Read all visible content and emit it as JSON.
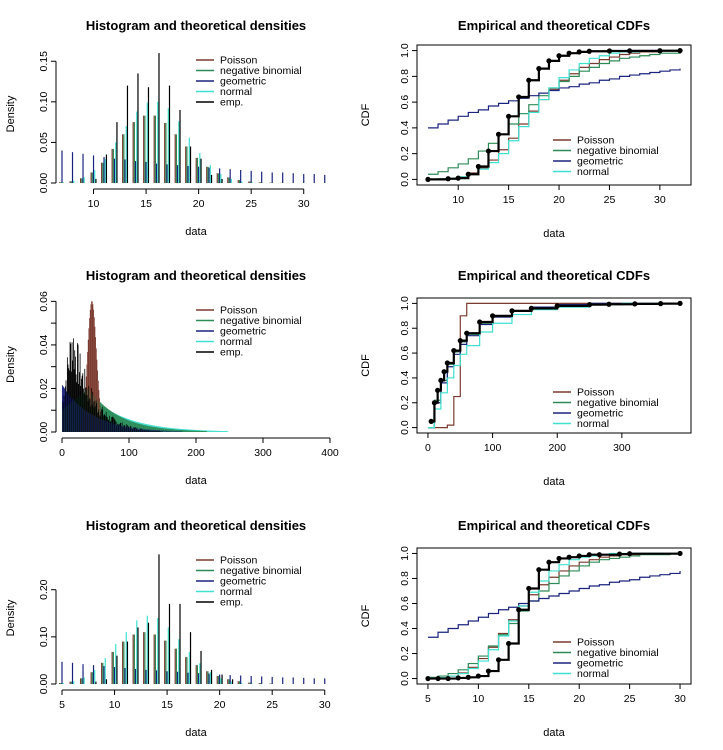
{
  "figure": {
    "colors": {
      "poisson": "#7b3a2e",
      "negative_binomial": "#2e8b57",
      "geometric": "#1a237e",
      "normal": "#40e0d0",
      "emp": "#000000"
    },
    "legend_density": [
      "Poisson",
      "negative binomial",
      "geometric",
      "normal",
      "emp."
    ],
    "legend_cdf": [
      "Poisson",
      "negative binomial",
      "geometric",
      "normal"
    ]
  },
  "chart_data": [
    {
      "type": "bar",
      "title": "Histogram and theoretical densities",
      "xlabel": "data",
      "ylabel": "Density",
      "xlim": [
        7,
        32.5
      ],
      "ylim": [
        0,
        0.17
      ],
      "xticks": [
        10,
        15,
        20,
        25,
        30
      ],
      "yticks": [
        0.0,
        0.05,
        0.1,
        0.15
      ],
      "ytick_labels": [
        "0.00",
        "0.05",
        "0.10",
        "0.15"
      ],
      "legend": "top-right",
      "x": [
        7,
        8,
        9,
        10,
        11,
        12,
        13,
        14,
        15,
        16,
        17,
        18,
        19,
        20,
        21,
        22,
        23,
        24,
        25,
        26,
        27,
        28,
        29,
        30,
        31,
        32
      ],
      "series": [
        {
          "name": "Poisson",
          "values": [
            0.0009,
            0.0022,
            0.0058,
            0.013,
            0.025,
            0.042,
            0.06,
            0.075,
            0.083,
            0.083,
            0.074,
            0.06,
            0.045,
            0.031,
            0.02,
            0.012,
            0.0069,
            0.0037,
            0.0019,
            0.0009,
            0.0004,
            0.0002,
            0.0001,
            0,
            0,
            0
          ]
        },
        {
          "name": "negative binomial",
          "values": [
            0.0009,
            0.0022,
            0.0058,
            0.013,
            0.025,
            0.042,
            0.06,
            0.075,
            0.083,
            0.083,
            0.074,
            0.06,
            0.045,
            0.031,
            0.02,
            0.012,
            0.0069,
            0.0037,
            0.0019,
            0.0009,
            0.0004,
            0.0002,
            0.0001,
            0,
            0,
            0
          ]
        },
        {
          "name": "geometric",
          "values": [
            0.04,
            0.038,
            0.036,
            0.034,
            0.032,
            0.03,
            0.029,
            0.027,
            0.026,
            0.024,
            0.023,
            0.022,
            0.021,
            0.02,
            0.019,
            0.018,
            0.017,
            0.016,
            0.015,
            0.014,
            0.013,
            0.013,
            0.012,
            0.011,
            0.011,
            0.01
          ]
        },
        {
          "name": "normal",
          "values": [
            0.001,
            0.003,
            0.007,
            0.016,
            0.03,
            0.05,
            0.07,
            0.088,
            0.099,
            0.1,
            0.092,
            0.076,
            0.056,
            0.037,
            0.022,
            0.011,
            0.005,
            0.002,
            0.0008,
            0.0002,
            0,
            0,
            0,
            0,
            0,
            0
          ]
        },
        {
          "name": "emp.",
          "values": [
            0,
            0,
            0,
            0.005,
            0.035,
            0.075,
            0.12,
            0.135,
            0.118,
            0.16,
            0.12,
            0.09,
            0.045,
            0.03,
            0.01,
            0.005,
            0,
            0,
            0,
            0,
            0,
            0,
            0,
            0,
            0,
            0
          ]
        }
      ]
    },
    {
      "type": "line",
      "title": "Empirical and theoretical CDFs",
      "xlabel": "data",
      "ylabel": "CDF",
      "xlim": [
        7,
        32
      ],
      "ylim": [
        0,
        1
      ],
      "xticks": [
        10,
        15,
        20,
        25,
        30
      ],
      "yticks": [
        0.0,
        0.2,
        0.4,
        0.6,
        0.8,
        1.0
      ],
      "ytick_labels": [
        "0.0",
        "0.2",
        "0.4",
        "0.6",
        "0.8",
        "1.0"
      ],
      "legend": "bottom-right",
      "x": [
        7,
        8,
        9,
        10,
        11,
        12,
        13,
        14,
        15,
        16,
        17,
        18,
        19,
        20,
        21,
        22,
        23,
        24,
        25,
        26,
        27,
        28,
        29,
        30,
        31,
        32
      ],
      "series": [
        {
          "name": "Poisson",
          "values": [
            0.002,
            0.004,
            0.01,
            0.02,
            0.05,
            0.09,
            0.15,
            0.23,
            0.32,
            0.43,
            0.53,
            0.62,
            0.7,
            0.77,
            0.82,
            0.87,
            0.9,
            0.93,
            0.95,
            0.97,
            0.98,
            0.99,
            0.99,
            1,
            1,
            1
          ]
        },
        {
          "name": "negative binomial",
          "values": [
            0.04,
            0.06,
            0.09,
            0.12,
            0.16,
            0.22,
            0.28,
            0.35,
            0.43,
            0.51,
            0.58,
            0.65,
            0.71,
            0.76,
            0.8,
            0.84,
            0.87,
            0.9,
            0.92,
            0.94,
            0.95,
            0.96,
            0.97,
            0.98,
            0.98,
            0.99
          ]
        },
        {
          "name": "geometric",
          "values": [
            0.4,
            0.43,
            0.46,
            0.49,
            0.52,
            0.54,
            0.57,
            0.59,
            0.61,
            0.63,
            0.65,
            0.67,
            0.69,
            0.71,
            0.72,
            0.74,
            0.75,
            0.77,
            0.78,
            0.8,
            0.81,
            0.82,
            0.83,
            0.84,
            0.85,
            0.86
          ]
        },
        {
          "name": "normal",
          "values": [
            0.002,
            0.004,
            0.01,
            0.02,
            0.04,
            0.08,
            0.13,
            0.2,
            0.3,
            0.41,
            0.52,
            0.62,
            0.71,
            0.79,
            0.85,
            0.9,
            0.94,
            0.96,
            0.98,
            0.99,
            0.99,
            1,
            1,
            1,
            1,
            1
          ]
        }
      ],
      "empirical": {
        "x": [
          7,
          9,
          10,
          11,
          12,
          13,
          14,
          15,
          16,
          17,
          18,
          19,
          20,
          21,
          22,
          23,
          25,
          27,
          30,
          32
        ],
        "y": [
          0.0,
          0.005,
          0.01,
          0.04,
          0.1,
          0.22,
          0.35,
          0.49,
          0.64,
          0.77,
          0.86,
          0.92,
          0.96,
          0.98,
          0.99,
          0.995,
          0.997,
          0.998,
          0.999,
          1.0
        ]
      }
    },
    {
      "type": "bar",
      "title": "Histogram and theoretical densities",
      "xlabel": "data",
      "ylabel": "Density",
      "xlim": [
        0,
        400
      ],
      "ylim": [
        0,
        0.062
      ],
      "xticks": [
        0,
        100,
        200,
        300,
        400
      ],
      "yticks": [
        0.0,
        0.01,
        0.02,
        0.03,
        0.04,
        0.05,
        0.06
      ],
      "ytick_labels": [
        "0.00",
        "",
        "0.02",
        "",
        "0.04",
        "",
        "0.06"
      ],
      "legend": "top-right",
      "series": [
        {
          "name": "Poisson",
          "mean": 45,
          "peak": 0.06
        },
        {
          "name": "negative binomial",
          "mean": 45,
          "peak": 0.02
        },
        {
          "name": "geometric",
          "mean": 45,
          "peak": 0.022
        },
        {
          "name": "normal",
          "mean": 45,
          "peak": 0.012
        },
        {
          "name": "emp.",
          "peak": 0.05
        }
      ]
    },
    {
      "type": "line",
      "title": "Empirical and theoretical CDFs",
      "xlabel": "data",
      "ylabel": "CDF",
      "xlim": [
        0,
        390
      ],
      "ylim": [
        0,
        1
      ],
      "xticks": [
        0,
        100,
        200,
        300
      ],
      "yticks": [
        0.0,
        0.2,
        0.4,
        0.6,
        0.8,
        1.0
      ],
      "ytick_labels": [
        "0.0",
        "0.2",
        "0.4",
        "0.6",
        "0.8",
        "1.0"
      ],
      "legend": "bottom-right",
      "x": [
        0,
        10,
        20,
        30,
        40,
        50,
        60,
        80,
        100,
        130,
        160,
        200,
        250,
        300,
        390
      ],
      "series": [
        {
          "name": "Poisson",
          "values": [
            0,
            0,
            0,
            0.02,
            0.25,
            0.9,
            1,
            1,
            1,
            1,
            1,
            1,
            1,
            1,
            1
          ]
        },
        {
          "name": "negative binomial",
          "values": [
            0,
            0.22,
            0.38,
            0.51,
            0.61,
            0.69,
            0.75,
            0.84,
            0.89,
            0.94,
            0.96,
            0.98,
            0.99,
            1,
            1
          ]
        },
        {
          "name": "geometric",
          "values": [
            0,
            0.2,
            0.36,
            0.49,
            0.59,
            0.67,
            0.74,
            0.83,
            0.89,
            0.94,
            0.97,
            0.99,
            1,
            1,
            1
          ]
        },
        {
          "name": "normal",
          "values": [
            0,
            0.15,
            0.28,
            0.4,
            0.5,
            0.59,
            0.66,
            0.77,
            0.84,
            0.91,
            0.95,
            0.97,
            0.99,
            1,
            1
          ]
        }
      ],
      "empirical": {
        "x": [
          5,
          10,
          15,
          20,
          25,
          30,
          40,
          50,
          60,
          80,
          100,
          130,
          160,
          200,
          250,
          280,
          320,
          360,
          390
        ],
        "y": [
          0.05,
          0.2,
          0.3,
          0.38,
          0.45,
          0.52,
          0.62,
          0.7,
          0.76,
          0.85,
          0.9,
          0.94,
          0.96,
          0.98,
          0.99,
          0.993,
          0.996,
          0.998,
          1.0
        ]
      }
    },
    {
      "type": "bar",
      "title": "Histogram and theoretical densities",
      "xlabel": "data",
      "ylabel": "Density",
      "xlim": [
        5,
        30.5
      ],
      "ylim": [
        0,
        0.28
      ],
      "xticks": [
        5,
        10,
        15,
        20,
        25,
        30
      ],
      "yticks": [
        0.0,
        0.1,
        0.2
      ],
      "ytick_labels": [
        "0.00",
        "0.10",
        "0.20"
      ],
      "legend": "top-right",
      "x": [
        5,
        6,
        7,
        8,
        9,
        10,
        11,
        12,
        13,
        14,
        15,
        16,
        17,
        18,
        19,
        20,
        21,
        22,
        23,
        24,
        25,
        26,
        27,
        28,
        29,
        30
      ],
      "series": [
        {
          "name": "Poisson",
          "values": [
            0.002,
            0.005,
            0.012,
            0.025,
            0.045,
            0.068,
            0.09,
            0.105,
            0.11,
            0.105,
            0.092,
            0.075,
            0.057,
            0.04,
            0.027,
            0.017,
            0.01,
            0.006,
            0.003,
            0.002,
            0.001,
            0,
            0,
            0,
            0,
            0
          ]
        },
        {
          "name": "negative binomial",
          "values": [
            0.002,
            0.005,
            0.012,
            0.025,
            0.045,
            0.068,
            0.09,
            0.105,
            0.11,
            0.105,
            0.092,
            0.075,
            0.057,
            0.04,
            0.027,
            0.017,
            0.01,
            0.006,
            0.003,
            0.002,
            0.001,
            0,
            0,
            0,
            0,
            0
          ]
        },
        {
          "name": "geometric",
          "values": [
            0.047,
            0.045,
            0.042,
            0.04,
            0.038,
            0.036,
            0.034,
            0.032,
            0.03,
            0.029,
            0.027,
            0.026,
            0.024,
            0.023,
            0.022,
            0.02,
            0.019,
            0.018,
            0.017,
            0.016,
            0.015,
            0.014,
            0.014,
            0.013,
            0.012,
            0.012
          ]
        },
        {
          "name": "normal",
          "values": [
            0.002,
            0.006,
            0.014,
            0.03,
            0.055,
            0.085,
            0.11,
            0.135,
            0.145,
            0.14,
            0.12,
            0.095,
            0.068,
            0.044,
            0.025,
            0.012,
            0.005,
            0.002,
            0.001,
            0,
            0,
            0,
            0,
            0,
            0,
            0
          ]
        },
        {
          "name": "emp.",
          "values": [
            0,
            0,
            0,
            0.005,
            0.01,
            0.06,
            0.09,
            0.12,
            0.13,
            0.275,
            0.17,
            0.17,
            0.11,
            0.07,
            0.03,
            0.02,
            0.01,
            0,
            0,
            0,
            0,
            0,
            0,
            0,
            0,
            0
          ]
        }
      ]
    },
    {
      "type": "line",
      "title": "Empirical and theoretical CDFs",
      "xlabel": "data",
      "ylabel": "CDF",
      "xlim": [
        5,
        30
      ],
      "ylim": [
        0,
        1
      ],
      "xticks": [
        5,
        10,
        15,
        20,
        25,
        30
      ],
      "yticks": [
        0.0,
        0.2,
        0.4,
        0.6,
        0.8,
        1.0
      ],
      "ytick_labels": [
        "0.0",
        "0.2",
        "0.4",
        "0.6",
        "0.8",
        "1.0"
      ],
      "legend": "bottom-right",
      "x": [
        5,
        6,
        7,
        8,
        9,
        10,
        11,
        12,
        13,
        14,
        15,
        16,
        17,
        18,
        19,
        20,
        21,
        22,
        23,
        24,
        25,
        26,
        27,
        28,
        29,
        30
      ],
      "series": [
        {
          "name": "Poisson",
          "values": [
            0.003,
            0.008,
            0.02,
            0.045,
            0.09,
            0.16,
            0.25,
            0.36,
            0.47,
            0.58,
            0.67,
            0.75,
            0.81,
            0.86,
            0.9,
            0.93,
            0.95,
            0.97,
            0.98,
            0.99,
            0.99,
            1,
            1,
            1,
            1,
            1
          ]
        },
        {
          "name": "negative binomial",
          "values": [
            0.01,
            0.02,
            0.04,
            0.07,
            0.12,
            0.18,
            0.26,
            0.35,
            0.44,
            0.54,
            0.62,
            0.7,
            0.76,
            0.82,
            0.86,
            0.9,
            0.93,
            0.95,
            0.96,
            0.97,
            0.98,
            0.99,
            0.99,
            0.99,
            1,
            1
          ]
        },
        {
          "name": "geometric",
          "values": [
            0.33,
            0.37,
            0.4,
            0.43,
            0.46,
            0.49,
            0.52,
            0.55,
            0.57,
            0.6,
            0.62,
            0.64,
            0.66,
            0.68,
            0.7,
            0.72,
            0.74,
            0.75,
            0.77,
            0.78,
            0.79,
            0.81,
            0.82,
            0.83,
            0.84,
            0.86
          ]
        },
        {
          "name": "normal",
          "values": [
            0.003,
            0.008,
            0.02,
            0.04,
            0.08,
            0.14,
            0.23,
            0.34,
            0.46,
            0.58,
            0.69,
            0.78,
            0.86,
            0.91,
            0.95,
            0.97,
            0.98,
            0.99,
            1,
            1,
            1,
            1,
            1,
            1,
            1,
            1
          ]
        }
      ],
      "empirical": {
        "x": [
          5,
          6,
          7,
          8,
          9,
          10,
          11,
          12,
          13,
          14,
          15,
          16,
          17,
          18,
          19,
          20,
          21,
          22,
          24,
          25,
          30
        ],
        "y": [
          0.0,
          0.0,
          0.0,
          0.005,
          0.01,
          0.02,
          0.06,
          0.15,
          0.28,
          0.55,
          0.72,
          0.87,
          0.93,
          0.96,
          0.97,
          0.98,
          0.99,
          0.99,
          0.995,
          0.998,
          1.0
        ]
      }
    }
  ]
}
